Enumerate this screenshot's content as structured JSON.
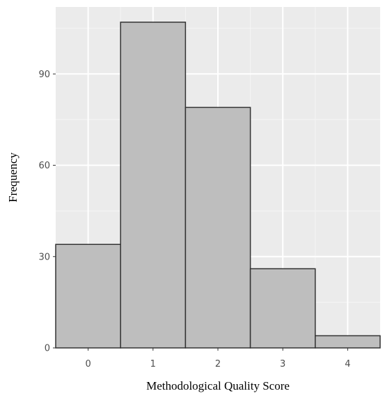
{
  "chart_data": {
    "type": "bar",
    "categories": [
      "0",
      "1",
      "2",
      "3",
      "4"
    ],
    "values": [
      34,
      107,
      79,
      26,
      4
    ],
    "title": "",
    "xlabel": "Methodological Quality Score",
    "ylabel": "Frequency",
    "xlim": [
      -0.5,
      4.5
    ],
    "ylim": [
      0,
      112
    ],
    "yticks": [
      0,
      30,
      60,
      90
    ],
    "grid": true,
    "colors": {
      "panel_background": "#ebebeb",
      "grid_major": "#ffffff",
      "grid_minor": "#f5f5f5",
      "bar_fill": "#bebebe",
      "bar_stroke": "#333333"
    }
  }
}
